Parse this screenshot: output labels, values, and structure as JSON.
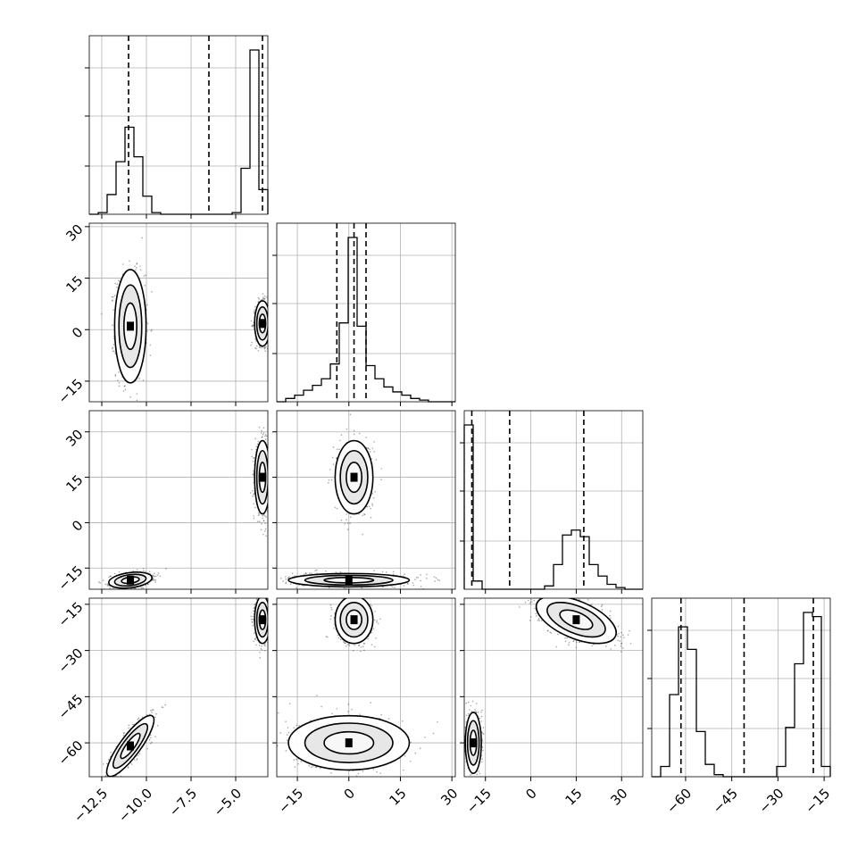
{
  "chart_data": {
    "type": "corner",
    "parameters": [
      {
        "index": 0,
        "range": [
          -13.2,
          -3.2
        ],
        "ticks": [
          -12.5,
          -10.0,
          -7.5,
          -5.0
        ],
        "tick_labels": [
          "−12.5",
          "−10.0",
          "−7.5",
          "−5.0"
        ],
        "quantile_lines": [
          -11.0,
          -6.5,
          -3.5
        ]
      },
      {
        "index": 1,
        "range": [
          -21,
          31
        ],
        "ticks": [
          -15,
          0,
          15,
          30
        ],
        "tick_labels": [
          "−15",
          "0",
          "15",
          "30"
        ],
        "quantile_lines": [
          -3.5,
          1.5,
          5.0
        ]
      },
      {
        "index": 2,
        "range": [
          -22,
          37
        ],
        "ticks": [
          -15,
          0,
          15,
          30
        ],
        "tick_labels": [
          "−15",
          "0",
          "15",
          "30"
        ],
        "quantile_lines": [
          -19.5,
          -7.0,
          17.5
        ]
      },
      {
        "index": 3,
        "range": [
          -71,
          -13
        ],
        "ticks": [
          -60,
          -45,
          -30,
          -15
        ],
        "tick_labels": [
          "−60",
          "−45",
          "−30",
          "−15"
        ],
        "quantile_lines": [
          -61.5,
          -41.0,
          -18.5
        ]
      }
    ],
    "histograms": [
      {
        "param": 0,
        "bin_edges": [
          -13.2,
          -12.7,
          -12.2,
          -11.7,
          -11.2,
          -10.7,
          -10.2,
          -9.7,
          -9.2,
          -8.7,
          -8.2,
          -7.7,
          -7.2,
          -6.7,
          -6.2,
          -5.7,
          -5.2,
          -4.7,
          -4.2,
          -3.7,
          -3.2
        ],
        "counts": [
          0,
          1,
          12,
          32,
          53,
          35,
          11,
          1,
          0,
          0,
          0,
          0,
          0,
          0,
          0,
          0,
          1,
          28,
          100,
          15
        ]
      },
      {
        "param": 1,
        "bin_edges": [
          -21.0,
          -18.4,
          -15.8,
          -13.2,
          -10.6,
          -8.0,
          -5.4,
          -2.8,
          -0.2,
          2.4,
          5.0,
          7.6,
          10.2,
          12.8,
          15.4,
          18.0,
          20.6,
          23.2,
          25.8,
          28.4,
          31.0
        ],
        "counts": [
          0,
          2,
          4,
          7,
          10,
          14,
          23,
          48,
          100,
          46,
          22,
          14,
          9,
          6,
          4,
          2,
          1,
          0,
          0,
          0
        ]
      },
      {
        "param": 2,
        "bin_edges": [
          -22.0,
          -19.05,
          -16.1,
          -13.15,
          -10.2,
          -7.25,
          -4.3,
          -1.35,
          1.6,
          4.55,
          7.5,
          10.45,
          13.4,
          16.35,
          19.3,
          22.25,
          25.2,
          28.15,
          31.1,
          34.05,
          37.0
        ],
        "counts": [
          100,
          5,
          0,
          0,
          0,
          0,
          0,
          0,
          0,
          2,
          15,
          33,
          36,
          32,
          15,
          8,
          3,
          1,
          0,
          0
        ]
      },
      {
        "param": 3,
        "bin_edges": [
          -71.0,
          -68.1,
          -65.2,
          -62.3,
          -59.4,
          -56.5,
          -53.6,
          -50.7,
          -47.8,
          -44.9,
          -42.0,
          -39.1,
          -36.2,
          -33.3,
          -30.4,
          -27.5,
          -24.6,
          -21.7,
          -18.8,
          -15.9,
          -13.0
        ],
        "counts": [
          0,
          5,
          40,
          73,
          62,
          22,
          6,
          1,
          0,
          0,
          0,
          0,
          0,
          0,
          5,
          24,
          55,
          80,
          78,
          5
        ]
      }
    ],
    "pairs": [
      {
        "x_param": 0,
        "y_param": 1,
        "clusters": [
          {
            "cx": -10.9,
            "cy": 1.0,
            "sx": 0.4,
            "sy": 7.5,
            "rho": 0.0,
            "weight": 0.55
          },
          {
            "cx": -3.5,
            "cy": 1.8,
            "sx": 0.2,
            "sy": 3.0,
            "rho": 0.0,
            "weight": 0.45
          }
        ]
      },
      {
        "x_param": 0,
        "y_param": 2,
        "clusters": [
          {
            "cx": -10.9,
            "cy": -19.0,
            "sx": 0.55,
            "sy": 1.2,
            "rho": 0.3,
            "weight": 0.5
          },
          {
            "cx": -3.5,
            "cy": 15.0,
            "sx": 0.2,
            "sy": 5.5,
            "rho": 0.0,
            "weight": 0.5
          }
        ]
      },
      {
        "x_param": 0,
        "y_param": 3,
        "clusters": [
          {
            "cx": -10.9,
            "cy": -61.0,
            "sx": 0.6,
            "sy": 4.5,
            "rho": 0.85,
            "weight": 0.5
          },
          {
            "cx": -3.5,
            "cy": -20.0,
            "sx": 0.2,
            "sy": 3.5,
            "rho": 0.0,
            "weight": 0.5
          }
        ]
      },
      {
        "x_param": 1,
        "y_param": 2,
        "clusters": [
          {
            "cx": 1.5,
            "cy": 15.0,
            "sx": 2.5,
            "sy": 5.5,
            "rho": 0.0,
            "weight": 0.5
          },
          {
            "cx": 0.0,
            "cy": -19.0,
            "sx": 8.0,
            "sy": 1.0,
            "rho": 0.0,
            "weight": 0.5
          }
        ]
      },
      {
        "x_param": 1,
        "y_param": 3,
        "clusters": [
          {
            "cx": 1.5,
            "cy": -20.0,
            "sx": 2.5,
            "sy": 3.5,
            "rho": 0.0,
            "weight": 0.5
          },
          {
            "cx": 0.0,
            "cy": -60.0,
            "sx": 8.0,
            "sy": 4.0,
            "rho": 0.0,
            "weight": 0.5
          }
        ]
      },
      {
        "x_param": 2,
        "y_param": 3,
        "clusters": [
          {
            "cx": 15.0,
            "cy": -20.0,
            "sx": 6.0,
            "sy": 3.5,
            "rho": -0.55,
            "weight": 0.5
          },
          {
            "cx": -19.0,
            "cy": -60.0,
            "sx": 1.2,
            "sy": 4.5,
            "rho": 0.0,
            "weight": 0.5
          }
        ]
      }
    ],
    "grid": true,
    "contour_levels": [
      0.39,
      0.86,
      0.99
    ]
  },
  "colors": {
    "points": "#000000",
    "hist": "#000000",
    "grid": "#b0b0b0",
    "quantile": "#000000",
    "contour_fill_low": "#f2f2f2",
    "contour_fill_high": "#000000"
  }
}
